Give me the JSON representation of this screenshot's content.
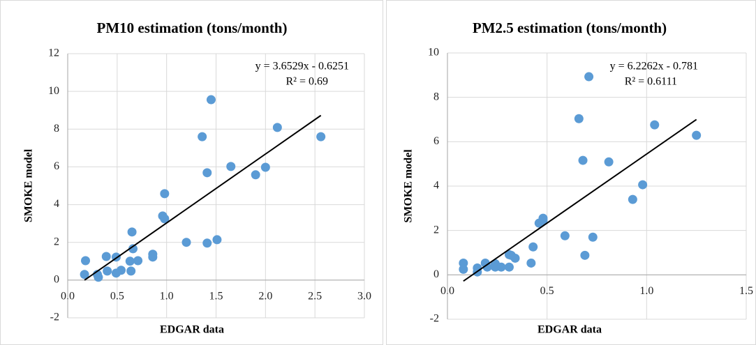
{
  "chart_data": [
    {
      "type": "scatter",
      "title": "PM10 estimation (tons/month)",
      "x_label": "EDGAR data",
      "y_label": "SMOKE model",
      "annotations": [
        "y = 3.6529x - 0.6251",
        "R² = 0.69"
      ],
      "color": "#5b9bd5",
      "grid": true,
      "xlim": [
        0,
        3
      ],
      "ylim": [
        -2,
        12
      ],
      "xticks": [
        {
          "value": 0,
          "label": "0.0"
        },
        {
          "value": 0.5,
          "label": "0.5"
        },
        {
          "value": 1,
          "label": "1.0"
        },
        {
          "value": 1.5,
          "label": "1.5"
        },
        {
          "value": 2,
          "label": "2.0"
        },
        {
          "value": 2.5,
          "label": "2.5"
        },
        {
          "value": 3,
          "label": "3.0"
        }
      ],
      "yticks": [
        -2,
        0,
        2,
        4,
        6,
        8,
        10,
        12
      ],
      "x": [
        0.18,
        0.17,
        0.3,
        0.31,
        0.39,
        0.4,
        0.49,
        0.49,
        0.54,
        0.63,
        0.64,
        0.65,
        0.66,
        0.71,
        0.86,
        0.86,
        0.96,
        0.98,
        0.98,
        1.2,
        1.36,
        1.41,
        1.41,
        1.45,
        1.51,
        1.65,
        1.9,
        2.0,
        2.12,
        2.56
      ],
      "values": [
        1.03,
        0.3,
        0.3,
        0.15,
        1.25,
        0.48,
        1.22,
        0.37,
        0.52,
        1.0,
        0.48,
        2.55,
        1.66,
        1.03,
        1.22,
        1.37,
        3.4,
        3.25,
        4.58,
        2.0,
        7.6,
        5.69,
        1.96,
        9.56,
        2.14,
        6.02,
        5.58,
        5.98,
        8.09,
        7.6
      ]
    },
    {
      "type": "scatter",
      "title": "PM2.5 estimation (tons/month)",
      "x_label": "EDGAR data",
      "y_label": "SMOKE model",
      "annotations": [
        "y = 6.2262x - 0.781",
        "R² = 0.6111"
      ],
      "color": "#5b9bd5",
      "grid": true,
      "xlim": [
        0,
        1.5
      ],
      "ylim": [
        -2,
        10
      ],
      "xticks": [
        {
          "value": 0,
          "label": "0.0"
        },
        {
          "value": 0.5,
          "label": "0.5"
        },
        {
          "value": 1,
          "label": "1.0"
        },
        1.5
      ],
      "yticks": [
        -2,
        0,
        2,
        4,
        6,
        8,
        10
      ],
      "x": [
        0.08,
        0.08,
        0.15,
        0.15,
        0.19,
        0.2,
        0.24,
        0.24,
        0.27,
        0.31,
        0.31,
        0.32,
        0.34,
        0.42,
        0.43,
        0.46,
        0.48,
        0.48,
        0.59,
        0.66,
        0.68,
        0.69,
        0.71,
        0.73,
        0.81,
        0.93,
        0.98,
        1.04,
        1.25
      ],
      "values": [
        0.53,
        0.25,
        0.31,
        0.13,
        0.53,
        0.35,
        0.5,
        0.35,
        0.35,
        0.35,
        0.91,
        0.88,
        0.75,
        0.53,
        1.26,
        2.33,
        2.55,
        2.45,
        1.76,
        7.04,
        5.16,
        0.88,
        8.93,
        1.7,
        5.09,
        3.4,
        4.06,
        6.76,
        6.29
      ]
    }
  ]
}
